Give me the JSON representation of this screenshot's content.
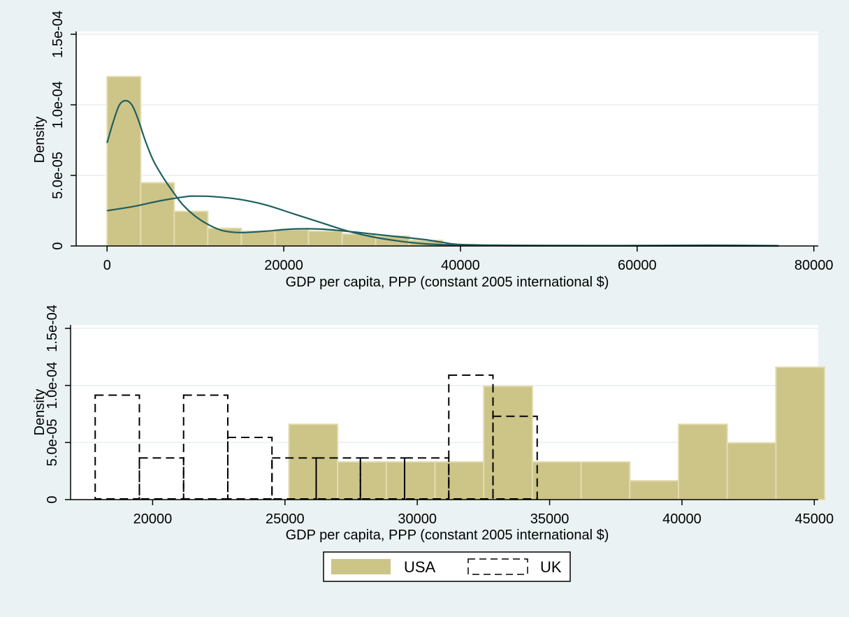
{
  "colors": {
    "background": "#eaf2f3",
    "plot_bg": "#ffffff",
    "usa_fill": "#cdc488",
    "usa_edge": "#e2dcb0",
    "kde_line": "#1f5f5f",
    "uk_line": "#000000",
    "grid": "#e8eef0"
  },
  "legend": {
    "usa_label": "USA",
    "uk_label": "UK"
  },
  "chart_data": [
    {
      "type": "histogram",
      "title": "",
      "xlabel": "GDP per capita, PPP (constant 2005 international $)",
      "ylabel": "Density",
      "xlim": [
        -3500,
        80500
      ],
      "ylim": [
        0,
        0.000152
      ],
      "xticks": [
        0,
        20000,
        40000,
        60000,
        80000
      ],
      "xtick_labels": [
        "0",
        "20000",
        "40000",
        "60000",
        "80000"
      ],
      "yticks": [
        0,
        5e-05,
        0.0001,
        0.00015
      ],
      "ytick_labels": [
        "0",
        "5.0e-05",
        "1.0e-04",
        "1.5e-04"
      ],
      "grid": true,
      "bins": {
        "name": "USA",
        "start": 0,
        "width": 3800,
        "values": [
          0.00012,
          4.48e-05,
          2.45e-05,
          1.25e-05,
          1.05e-05,
          1.15e-05,
          1.05e-05,
          8.5e-06,
          7e-06,
          4e-06,
          1e-06,
          5e-07,
          4e-07,
          3e-07,
          2e-07,
          1e-07,
          1e-07,
          1e-07,
          1e-07,
          1e-07
        ]
      },
      "kde_curves": [
        {
          "name": "kernel density",
          "points": [
            [
              0,
              7.3e-05
            ],
            [
              700,
              8.8e-05
            ],
            [
              1400,
              0.0001
            ],
            [
              2100,
              0.000103
            ],
            [
              2800,
              0.0001
            ],
            [
              3500,
              9e-05
            ],
            [
              4300,
              7.5e-05
            ],
            [
              5200,
              6.1e-05
            ],
            [
              6300,
              4.9e-05
            ],
            [
              7500,
              3.8e-05
            ],
            [
              8600,
              2.9e-05
            ],
            [
              10000,
              2.1e-05
            ],
            [
              11500,
              1.5e-05
            ],
            [
              13000,
              1.1e-05
            ],
            [
              15000,
              9.5e-06
            ],
            [
              18000,
              1.05e-05
            ],
            [
              21000,
              1.2e-05
            ],
            [
              24000,
              1.2e-05
            ],
            [
              27000,
              1.05e-05
            ],
            [
              30000,
              8.5e-06
            ],
            [
              33000,
              6.5e-06
            ],
            [
              36000,
              4.5e-06
            ],
            [
              38000,
              2.5e-06
            ],
            [
              40000,
              1e-06
            ],
            [
              45000,
              5e-07
            ],
            [
              52000,
              3e-07
            ],
            [
              60000,
              3e-07
            ],
            [
              68000,
              5e-07
            ],
            [
              76000,
              2e-07
            ]
          ]
        },
        {
          "name": "normal density",
          "points": [
            [
              0,
              2.5e-05
            ],
            [
              3000,
              2.8e-05
            ],
            [
              6000,
              3.2e-05
            ],
            [
              9000,
              3.5e-05
            ],
            [
              10000,
              3.53e-05
            ],
            [
              12000,
              3.5e-05
            ],
            [
              15000,
              3.3e-05
            ],
            [
              18000,
              2.9e-05
            ],
            [
              21000,
              2.3e-05
            ],
            [
              24000,
              1.7e-05
            ],
            [
              27000,
              1.1e-05
            ],
            [
              30000,
              6.5e-06
            ],
            [
              33000,
              3.5e-06
            ],
            [
              36000,
              1.5e-06
            ],
            [
              40000,
              6e-07
            ],
            [
              46000,
              2e-07
            ],
            [
              55000,
              1e-07
            ],
            [
              76000,
              0
            ]
          ]
        }
      ]
    },
    {
      "type": "histogram",
      "title": "",
      "xlabel": "GDP per capita, PPP (constant 2005 international $)",
      "ylabel": "Density",
      "xlim": [
        16900,
        45150
      ],
      "ylim": [
        0,
        0.000153
      ],
      "xticks": [
        20000,
        25000,
        30000,
        35000,
        40000,
        45000
      ],
      "xtick_labels": [
        "20000",
        "25000",
        "30000",
        "35000",
        "40000",
        "45000"
      ],
      "yticks": [
        0,
        5e-05,
        0.0001,
        0.00015
      ],
      "ytick_labels": [
        "0",
        "5.0e-05",
        "1.0e-04",
        "1.5e-04"
      ],
      "grid": true,
      "series": [
        {
          "name": "USA",
          "style": "filled",
          "start": 25150,
          "width": 1840,
          "values": [
            6.6e-05,
            3.3e-05,
            3.3e-05,
            3.3e-05,
            9.93e-05,
            3.3e-05,
            3.3e-05,
            1.65e-05,
            6.6e-05,
            4.97e-05,
            0.000116
          ]
        },
        {
          "name": "UK",
          "style": "dashed outline",
          "start": 17830,
          "width": 1670,
          "values": [
            9.15e-05,
            3.65e-05,
            9.15e-05,
            5.45e-05,
            3.65e-05,
            3.65e-05,
            3.65e-05,
            3.65e-05,
            0.000109,
            7.3e-05
          ]
        }
      ]
    }
  ]
}
